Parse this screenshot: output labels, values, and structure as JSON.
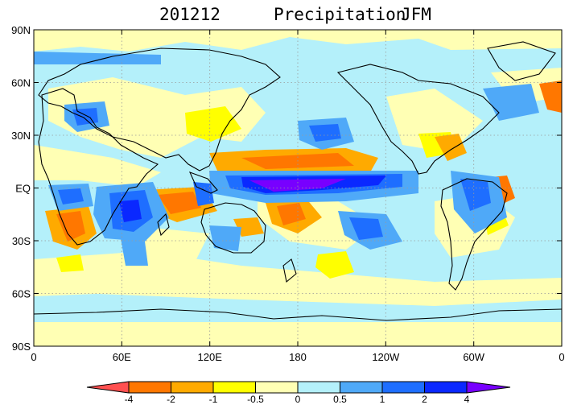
{
  "title": {
    "date": "201212",
    "variable": "Precipitation",
    "season": "JFM"
  },
  "map": {
    "projection": "equirectangular",
    "lon_range": [
      0,
      360
    ],
    "lat_range": [
      -90,
      90
    ],
    "lat_tick_labels": [
      "90N",
      "60N",
      "30N",
      "EQ",
      "30S",
      "60S",
      "90S"
    ],
    "lon_tick_labels": [
      "0",
      "60E",
      "120E",
      "180",
      "120W",
      "60W",
      "0"
    ],
    "gridlines": "dotted"
  },
  "colorbar": {
    "levels": [
      "-4",
      "-2",
      "-1",
      "-0.5",
      "0",
      "0.5",
      "1",
      "2",
      "4"
    ],
    "colors": [
      "#ff5050",
      "#ff7700",
      "#ffaa00",
      "#ffff00",
      "#ffffb4",
      "#b4f0fa",
      "#4fa9f8",
      "#1e6eff",
      "#0a28ff",
      "#7800ff"
    ]
  }
}
